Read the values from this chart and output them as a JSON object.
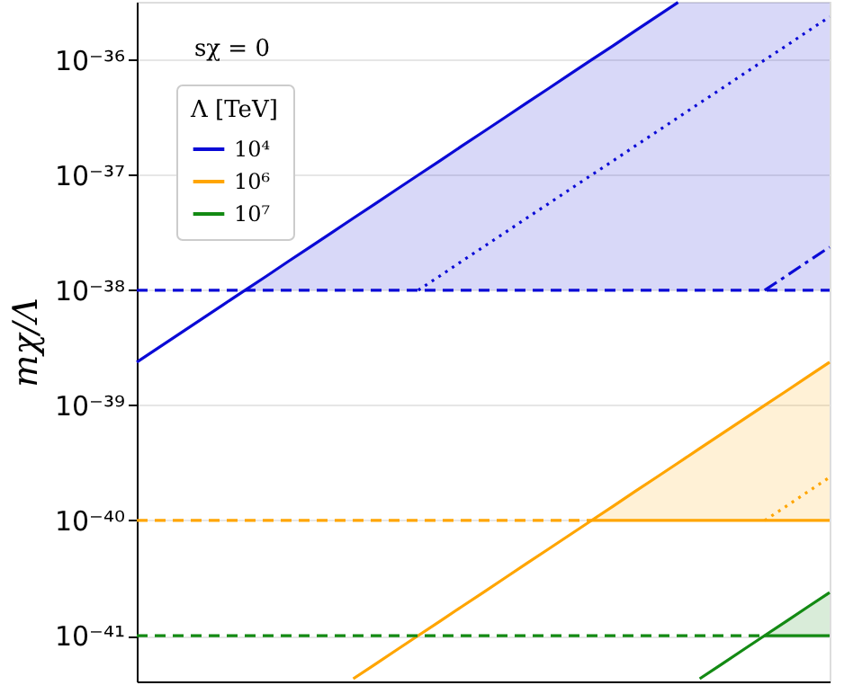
{
  "chart_data": {
    "type": "line",
    "ylabel": "mχ/Λ",
    "annotations": [
      "sχ = 0"
    ],
    "legend_title": "Λ [TeV]",
    "legend": "top left",
    "grid": "y",
    "log": "y",
    "tick_labels": "y",
    "categories": [
      null,
      null,
      null,
      null,
      null,
      null,
      null,
      null,
      null,
      null,
      null,
      null,
      null,
      null,
      null,
      null,
      null,
      null,
      null,
      null,
      null,
      null,
      null,
      null,
      null,
      null,
      null,
      null,
      null,
      null,
      null,
      null,
      null
    ],
    "ylim": [
      4e-42,
      3.2e-36
    ],
    "yticks": [
      {
        "value": 1e-41,
        "label": "10⁻⁴¹"
      },
      {
        "value": 1e-40,
        "label": "10⁻⁴⁰"
      },
      {
        "value": 1e-39,
        "label": "10⁻³⁹"
      },
      {
        "value": 1e-38,
        "label": "10⁻³⁸"
      },
      {
        "value": 1e-37,
        "label": "10⁻³⁷"
      },
      {
        "value": 1e-36,
        "label": "10⁻³⁶"
      }
    ],
    "series": [
      {
        "name": "10⁴",
        "color": "#0a0ad6",
        "line_style": "solid",
        "values": [
          2.37e-39,
          3.16e-39,
          4.22e-39,
          5.62e-39,
          7.5e-39,
          1e-38,
          1.33e-38,
          1.78e-38,
          2.37e-38,
          3.16e-38,
          4.22e-38,
          5.62e-38,
          7.5e-38,
          1e-37,
          1.33e-37,
          1.78e-37,
          2.37e-37,
          3.16e-37,
          4.22e-37,
          5.62e-37,
          7.5e-37,
          1e-36,
          1.33e-36,
          1.78e-36,
          2.37e-36,
          3.16e-36,
          null,
          null,
          null,
          null,
          null,
          null,
          null
        ],
        "lower": [
          null,
          null,
          null,
          null,
          null,
          1e-38,
          1e-38,
          1e-38,
          1e-38,
          1e-38,
          1e-38,
          1e-38,
          1e-38,
          1e-38,
          1e-38,
          1e-38,
          1e-38,
          1e-38,
          1e-38,
          1e-38,
          1e-38,
          1e-38,
          1e-38,
          1e-38,
          1e-38,
          1e-38,
          1e-38,
          1e-38,
          1e-38,
          1e-38,
          1e-38,
          1e-38,
          1e-38
        ],
        "upper": [
          null,
          null,
          null,
          null,
          null,
          1e-38,
          1.33e-38,
          1.78e-38,
          2.37e-38,
          3.16e-38,
          4.22e-38,
          5.62e-38,
          7.5e-38,
          1e-37,
          1.33e-37,
          1.78e-37,
          2.37e-37,
          3.16e-37,
          4.22e-37,
          5.62e-37,
          7.5e-37,
          1e-36,
          1.33e-36,
          1.78e-36,
          2.37e-36,
          3.16e-36,
          3.16e-36,
          3.16e-36,
          3.16e-36,
          3.16e-36,
          3.16e-36,
          3.16e-36,
          3.16e-36
        ]
      },
      {
        "color": "#0a0ad6",
        "line_style": "dashed",
        "values": [
          1e-38,
          1e-38,
          1e-38,
          1e-38,
          1e-38,
          1e-38,
          1e-38,
          1e-38,
          1e-38,
          1e-38,
          1e-38,
          1e-38,
          1e-38,
          1e-38,
          1e-38,
          1e-38,
          1e-38,
          1e-38,
          1e-38,
          1e-38,
          1e-38,
          1e-38,
          1e-38,
          1e-38,
          1e-38,
          1e-38,
          1e-38,
          1e-38,
          1e-38,
          1e-38,
          1e-38,
          1e-38,
          1e-38
        ]
      },
      {
        "color": "#0a0ad6",
        "line_style": "dotted",
        "values": [
          null,
          null,
          null,
          null,
          null,
          null,
          null,
          null,
          null,
          null,
          null,
          null,
          null,
          1e-38,
          1.33e-38,
          1.78e-38,
          2.37e-38,
          3.16e-38,
          4.22e-38,
          5.62e-38,
          7.5e-38,
          1e-37,
          1.33e-37,
          1.78e-37,
          2.37e-37,
          3.16e-37,
          4.22e-37,
          5.62e-37,
          7.5e-37,
          1e-36,
          1.33e-36,
          1.78e-36,
          2.37e-36
        ]
      },
      {
        "color": "#0a0ad6",
        "line_style": "dashdot",
        "values": [
          null,
          null,
          null,
          null,
          null,
          null,
          null,
          null,
          null,
          null,
          null,
          null,
          null,
          null,
          null,
          null,
          null,
          null,
          null,
          null,
          null,
          null,
          null,
          null,
          null,
          null,
          null,
          null,
          null,
          1e-38,
          1.33e-38,
          1.78e-38,
          2.37e-38
        ]
      },
      {
        "name": "10⁶",
        "color": "#ffa500",
        "line_style": "solid",
        "values": [
          null,
          null,
          null,
          null,
          null,
          null,
          null,
          null,
          null,
          null,
          4.22e-42,
          5.62e-42,
          7.5e-42,
          1e-41,
          1.33e-41,
          1.78e-41,
          2.37e-41,
          3.16e-41,
          4.22e-41,
          5.62e-41,
          7.5e-41,
          1e-40,
          1.33e-40,
          1.78e-40,
          2.37e-40,
          3.16e-40,
          4.22e-40,
          5.62e-40,
          7.5e-40,
          1e-39,
          1.33e-39,
          1.78e-39,
          2.37e-39
        ],
        "lower": [
          null,
          null,
          null,
          null,
          null,
          null,
          null,
          null,
          null,
          null,
          null,
          null,
          null,
          null,
          null,
          null,
          null,
          null,
          null,
          null,
          null,
          1e-40,
          1e-40,
          1e-40,
          1e-40,
          1e-40,
          1e-40,
          1e-40,
          1e-40,
          1e-40,
          1e-40,
          1e-40,
          1e-40
        ],
        "upper": [
          null,
          null,
          null,
          null,
          null,
          null,
          null,
          null,
          null,
          null,
          null,
          null,
          null,
          null,
          null,
          null,
          null,
          null,
          null,
          null,
          null,
          1e-40,
          1.33e-40,
          1.78e-40,
          2.37e-40,
          3.16e-40,
          4.22e-40,
          5.62e-40,
          7.5e-40,
          1e-39,
          1.33e-39,
          1.78e-39,
          2.37e-39
        ]
      },
      {
        "color": "#ffa500",
        "line_style": "dashed",
        "values": [
          1e-40,
          1e-40,
          1e-40,
          1e-40,
          1e-40,
          1e-40,
          1e-40,
          1e-40,
          1e-40,
          1e-40,
          1e-40,
          1e-40,
          1e-40,
          1e-40,
          1e-40,
          1e-40,
          1e-40,
          1e-40,
          1e-40,
          1e-40,
          1e-40,
          1e-40,
          null,
          null,
          null,
          null,
          null,
          null,
          null,
          null,
          null,
          null,
          null
        ]
      },
      {
        "color": "#ffa500",
        "line_style": "solid",
        "values": [
          null,
          null,
          null,
          null,
          null,
          null,
          null,
          null,
          null,
          null,
          null,
          null,
          null,
          null,
          null,
          null,
          null,
          null,
          null,
          null,
          null,
          1e-40,
          1e-40,
          1e-40,
          1e-40,
          1e-40,
          1e-40,
          1e-40,
          1e-40,
          1e-40,
          1e-40,
          1e-40,
          1e-40
        ]
      },
      {
        "color": "#ffa500",
        "line_style": "dotted",
        "values": [
          null,
          null,
          null,
          null,
          null,
          null,
          null,
          null,
          null,
          null,
          null,
          null,
          null,
          null,
          null,
          null,
          null,
          null,
          null,
          null,
          null,
          null,
          null,
          null,
          null,
          null,
          null,
          null,
          null,
          1e-40,
          1.33e-40,
          1.78e-40,
          2.37e-40
        ]
      },
      {
        "name": "10⁷",
        "color": "#138a13",
        "line_style": "solid",
        "values": [
          null,
          null,
          null,
          null,
          null,
          null,
          null,
          null,
          null,
          null,
          null,
          null,
          null,
          null,
          null,
          null,
          null,
          null,
          null,
          null,
          null,
          null,
          null,
          null,
          null,
          null,
          4.22e-42,
          5.62e-42,
          7.5e-42,
          1e-41,
          1.33e-41,
          1.78e-41,
          2.37e-41
        ],
        "lower": [
          null,
          null,
          null,
          null,
          null,
          null,
          null,
          null,
          null,
          null,
          null,
          null,
          null,
          null,
          null,
          null,
          null,
          null,
          null,
          null,
          null,
          null,
          null,
          null,
          null,
          null,
          null,
          null,
          null,
          1e-41,
          1e-41,
          1e-41,
          1e-41
        ],
        "upper": [
          null,
          null,
          null,
          null,
          null,
          null,
          null,
          null,
          null,
          null,
          null,
          null,
          null,
          null,
          null,
          null,
          null,
          null,
          null,
          null,
          null,
          null,
          null,
          null,
          null,
          null,
          null,
          null,
          null,
          1e-41,
          1.33e-41,
          1.78e-41,
          2.37e-41
        ]
      },
      {
        "color": "#138a13",
        "line_style": "dashed",
        "values": [
          1e-41,
          1e-41,
          1e-41,
          1e-41,
          1e-41,
          1e-41,
          1e-41,
          1e-41,
          1e-41,
          1e-41,
          1e-41,
          1e-41,
          1e-41,
          1e-41,
          1e-41,
          1e-41,
          1e-41,
          1e-41,
          1e-41,
          1e-41,
          1e-41,
          1e-41,
          1e-41,
          1e-41,
          1e-41,
          1e-41,
          1e-41,
          1e-41,
          1e-41,
          1e-41,
          null,
          null,
          null
        ]
      },
      {
        "color": "#138a13",
        "line_style": "solid",
        "values": [
          null,
          null,
          null,
          null,
          null,
          null,
          null,
          null,
          null,
          null,
          null,
          null,
          null,
          null,
          null,
          null,
          null,
          null,
          null,
          null,
          null,
          null,
          null,
          null,
          null,
          null,
          null,
          null,
          null,
          1e-41,
          1e-41,
          1e-41,
          1e-41
        ]
      }
    ]
  }
}
